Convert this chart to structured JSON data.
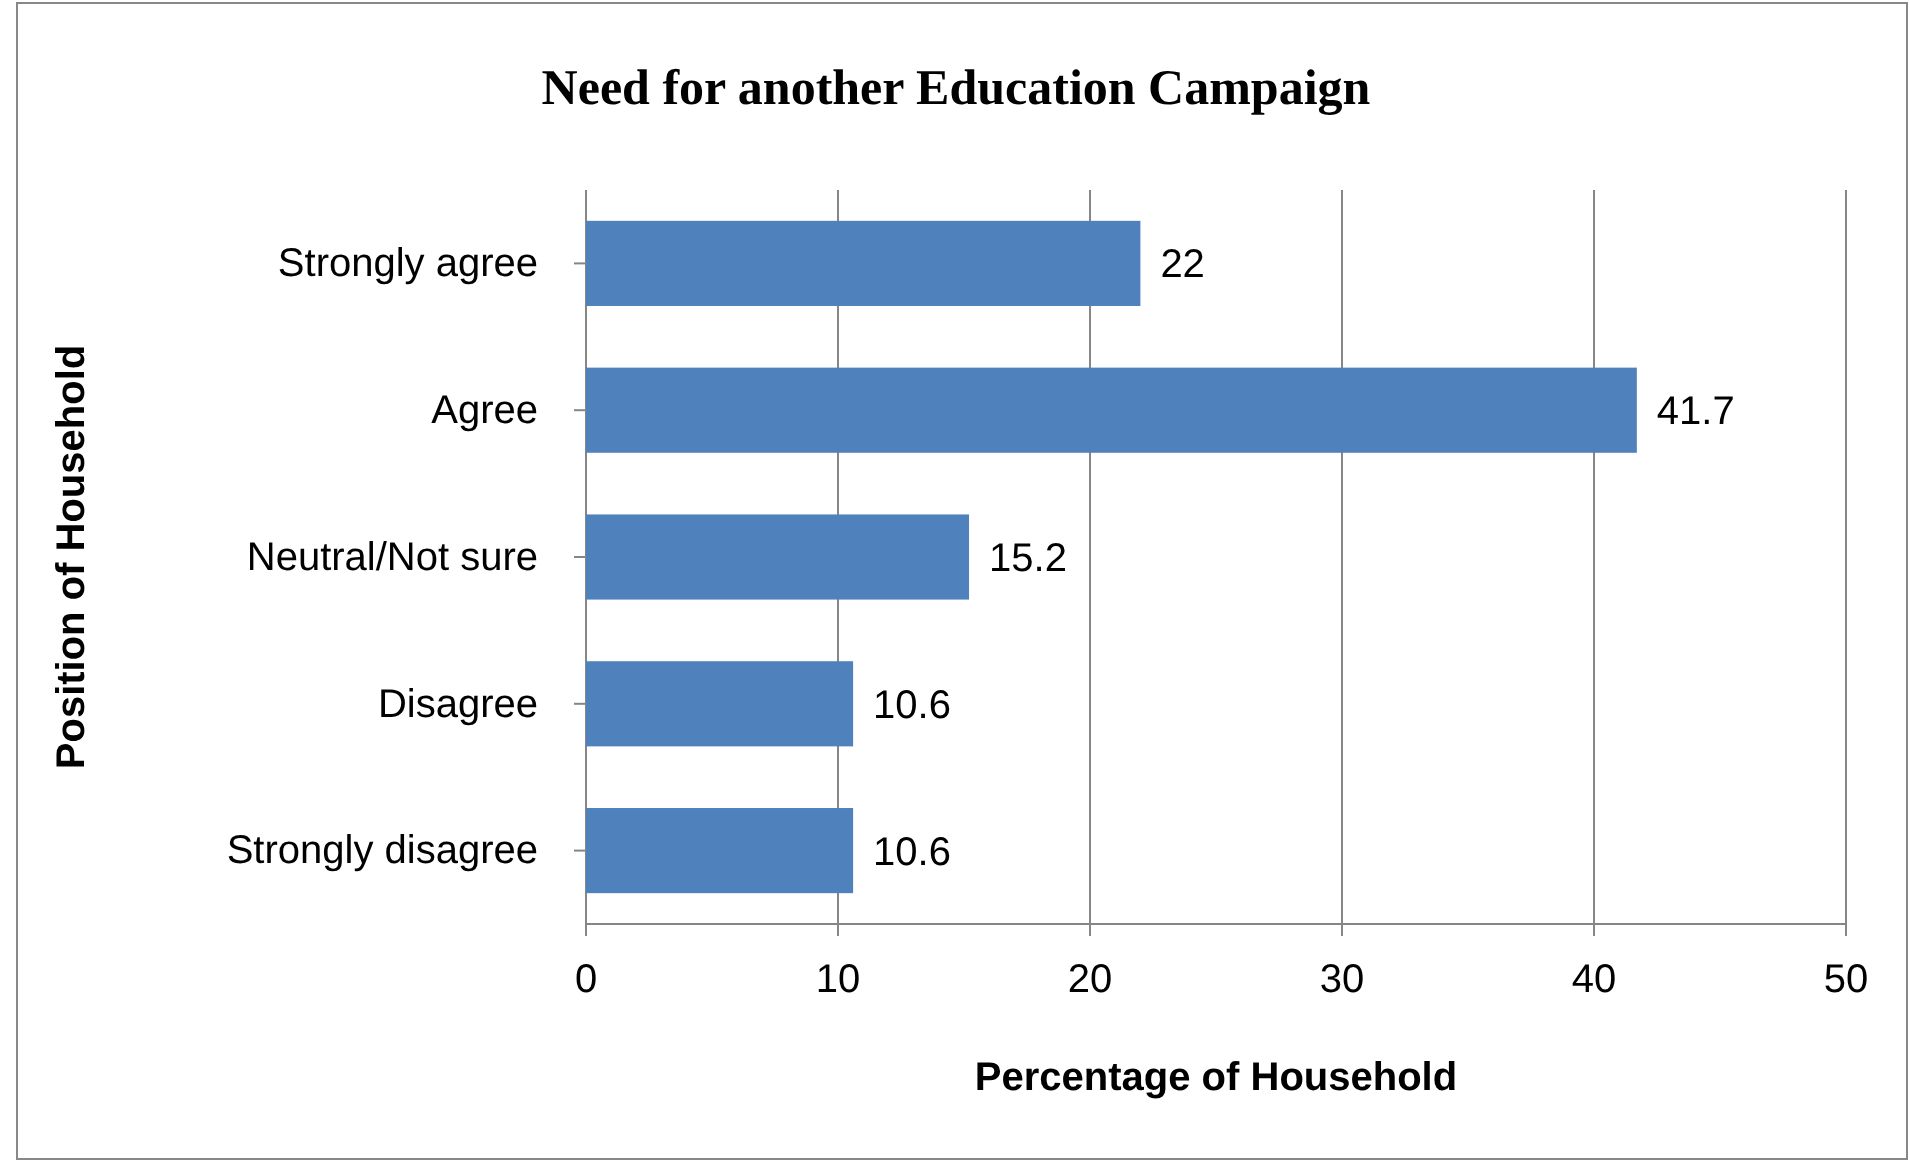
{
  "chart_data": {
    "type": "bar",
    "orientation": "horizontal",
    "title": "Need for another Education Campaign",
    "xlabel": "Percentage of Household",
    "ylabel": "Position of Household",
    "categories": [
      "Strongly agree",
      "Agree",
      "Neutral/Not sure",
      "Disagree",
      "Strongly disagree"
    ],
    "values": [
      22,
      41.7,
      15.2,
      10.6,
      10.6
    ],
    "color": "#4f81bd",
    "xlim": [
      0,
      50
    ],
    "xticks": [
      0,
      10,
      20,
      30,
      40,
      50
    ],
    "grid": "x",
    "data_labels": true
  }
}
